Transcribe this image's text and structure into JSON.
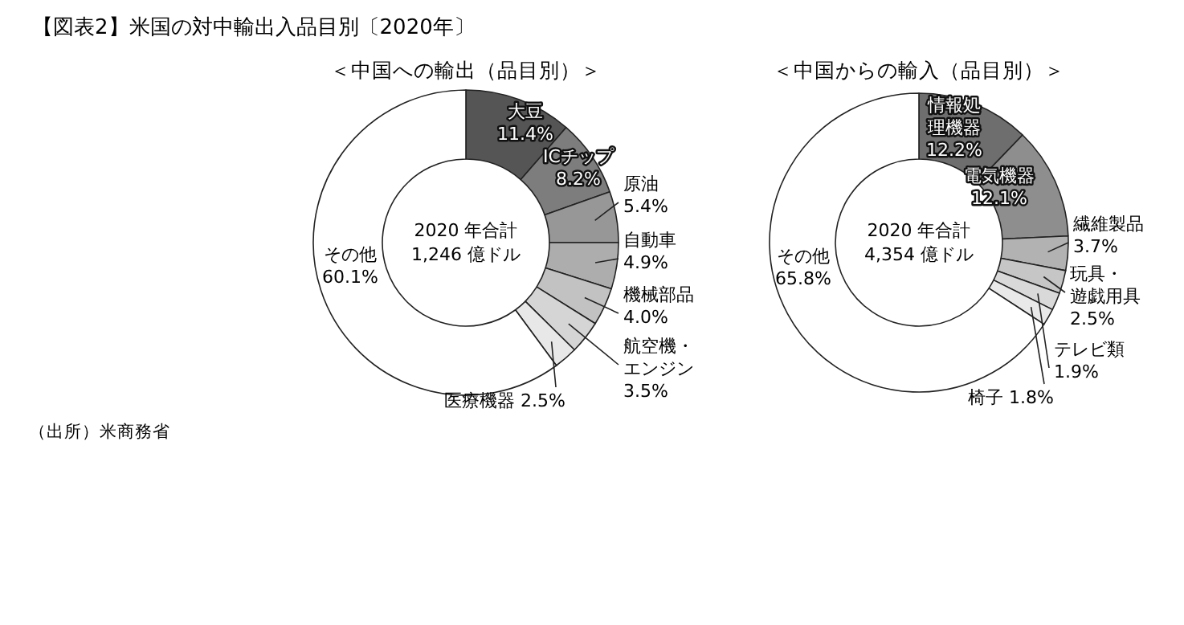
{
  "chart_data": [
    {
      "type": "donut",
      "title": "【図表2】米国の対中輸出入品目別〔2020年〕",
      "subtitle": "＜中国への輸出（品目別）＞",
      "categories": [
        "大豆",
        "ICチップ",
        "原油",
        "自動車",
        "機械部品",
        "航空機・エンジン",
        "医療機器",
        "その他"
      ],
      "values": [
        11.4,
        8.2,
        5.4,
        4.9,
        4.0,
        3.5,
        2.5,
        60.1
      ],
      "value_labels": [
        "11.4%",
        "8.2%",
        "5.4%",
        "4.9%",
        "4.0%",
        "3.5%",
        "2.5%",
        "60.1%"
      ],
      "colors": [
        "#555555",
        "#7d7d7d",
        "#979797",
        "#adadad",
        "#c2c2c2",
        "#d5d5d5",
        "#e8e8e8",
        "#ffffff"
      ],
      "annotations": [
        "2020 年合計\n1,246 億ドル",
        "（出所）米商務省"
      ]
    },
    {
      "type": "donut",
      "subtitle": "＜中国からの輸入（品目別）＞",
      "categories": [
        "情報処理機器",
        "電気機器",
        "繊維製品",
        "玩具・遊戯用具",
        "テレビ類",
        "椅子",
        "その他"
      ],
      "values": [
        12.2,
        12.1,
        3.7,
        2.5,
        1.9,
        1.8,
        65.8
      ],
      "value_labels": [
        "12.2%",
        "12.1%",
        "3.7%",
        "2.5%",
        "1.9%",
        "1.8%",
        "65.8%"
      ],
      "colors": [
        "#6e6e6e",
        "#8e8e8e",
        "#b2b2b2",
        "#c6c6c6",
        "#d9d9d9",
        "#e9e9e9",
        "#ffffff"
      ],
      "annotations": [
        "2020 年合計\n4,354 億ドル"
      ]
    }
  ]
}
